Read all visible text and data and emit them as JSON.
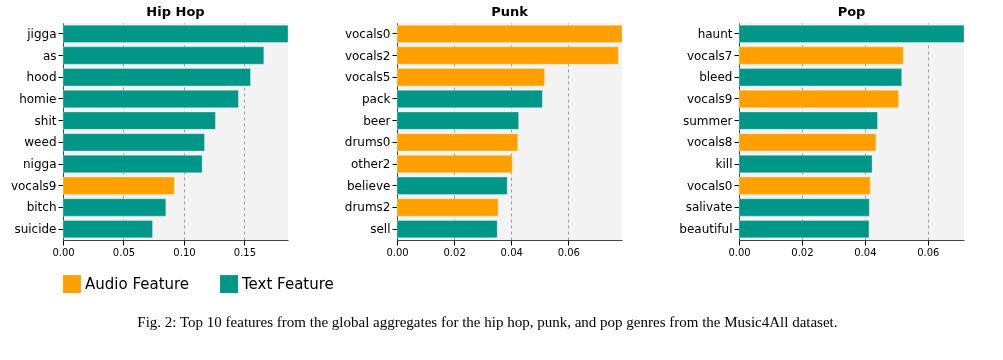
{
  "chart_data": [
    {
      "type": "bar",
      "orientation": "horizontal",
      "title": "Hip Hop",
      "categories": [
        "jigga",
        "as",
        "hood",
        "homie",
        "shit",
        "weed",
        "nigga",
        "vocals9",
        "bitch",
        "suicide"
      ],
      "series": [
        {
          "name": "Audio Feature",
          "color": "#ffa000",
          "values": [
            null,
            null,
            null,
            null,
            null,
            null,
            null,
            0.092,
            null,
            null
          ]
        },
        {
          "name": "Text Feature",
          "color": "#009688",
          "values": [
            0.186,
            0.166,
            0.155,
            0.145,
            0.126,
            0.117,
            0.115,
            null,
            0.085,
            0.074
          ]
        }
      ],
      "xlim": [
        0,
        0.186
      ],
      "xticks": [
        {
          "value": 0,
          "label": "0.00"
        },
        {
          "value": 0.05,
          "label": "0.05"
        },
        {
          "value": 0.1,
          "label": "0.10"
        },
        {
          "value": 0.15,
          "label": "0.15"
        }
      ],
      "grid": "x",
      "legend": "bottom"
    },
    {
      "type": "bar",
      "orientation": "horizontal",
      "title": "Punk",
      "categories": [
        "vocals0",
        "vocals2",
        "vocals5",
        "pack",
        "beer",
        "drums0",
        "other2",
        "believe",
        "drums2",
        "sell"
      ],
      "series": [
        {
          "name": "Audio Feature",
          "color": "#ffa000",
          "values": [
            0.0788,
            0.0775,
            0.0517,
            null,
            null,
            0.0423,
            0.0404,
            null,
            0.0354,
            null
          ]
        },
        {
          "name": "Text Feature",
          "color": "#009688",
          "values": [
            null,
            null,
            null,
            0.0509,
            0.0426,
            null,
            null,
            0.0386,
            null,
            0.0351
          ]
        }
      ],
      "xlim": [
        0,
        0.0788
      ],
      "xticks": [
        {
          "value": 0,
          "label": "0.00"
        },
        {
          "value": 0.02,
          "label": "0.02"
        },
        {
          "value": 0.04,
          "label": "0.04"
        },
        {
          "value": 0.06,
          "label": "0.06"
        }
      ],
      "grid": "x",
      "legend": "bottom",
      "annotations": [
        "Fig. 2: Top 10 features from the global aggregates for the hip hop, punk, and pop genres from the Music4All dataset."
      ]
    },
    {
      "type": "bar",
      "orientation": "horizontal",
      "title": "Pop",
      "categories": [
        "haunt",
        "vocals7",
        "bleed",
        "vocals9",
        "summer",
        "vocals8",
        "kill",
        "vocals0",
        "salivate",
        "beautiful"
      ],
      "series": [
        {
          "name": "Audio Feature",
          "color": "#ffa000",
          "values": [
            null,
            0.0522,
            null,
            0.0507,
            null,
            0.0435,
            null,
            0.0417,
            null,
            null
          ]
        },
        {
          "name": "Text Feature",
          "color": "#009688",
          "values": [
            0.0715,
            null,
            0.0517,
            null,
            0.044,
            null,
            0.0423,
            null,
            0.0414,
            0.0413
          ]
        }
      ],
      "xlim": [
        0,
        0.0715
      ],
      "xticks": [
        {
          "value": 0,
          "label": "0.00"
        },
        {
          "value": 0.02,
          "label": "0.02"
        },
        {
          "value": 0.04,
          "label": "0.04"
        },
        {
          "value": 0.06,
          "label": "0.06"
        }
      ],
      "grid": "x",
      "legend": "bottom"
    }
  ]
}
